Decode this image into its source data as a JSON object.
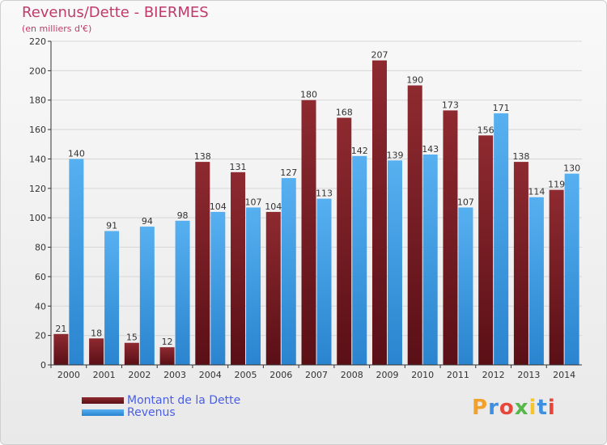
{
  "title": "Revenus/Dette - BIERMES",
  "subtitle": "(en milliers d'€)",
  "logo": {
    "text": "Proxiti",
    "colors": [
      "#f2a22c",
      "#3d8fe0",
      "#e9463b",
      "#55b848",
      "#f7c42b",
      "#3d8fe0",
      "#e9463b"
    ]
  },
  "colors": {
    "dette": "#7a1f26",
    "revenus": "#3c9ce6",
    "axis": "#333333",
    "label": "#333333"
  },
  "chart_data": {
    "type": "bar",
    "categories": [
      "2000",
      "2001",
      "2002",
      "2003",
      "2004",
      "2005",
      "2006",
      "2007",
      "2008",
      "2009",
      "2010",
      "2011",
      "2012",
      "2013",
      "2014"
    ],
    "series": [
      {
        "name": "Montant de la Dette",
        "values": [
          21,
          18,
          15,
          12,
          138,
          131,
          104,
          180,
          168,
          207,
          190,
          173,
          156,
          138,
          119
        ]
      },
      {
        "name": "Revenus",
        "values": [
          140,
          91,
          94,
          98,
          104,
          107,
          127,
          113,
          142,
          139,
          143,
          107,
          171,
          114,
          130
        ]
      }
    ],
    "ylim": [
      0,
      220
    ],
    "yticks": [
      0,
      20,
      40,
      60,
      80,
      100,
      120,
      140,
      160,
      180,
      200,
      220
    ],
    "grid": true,
    "legend": "bottom-left"
  }
}
